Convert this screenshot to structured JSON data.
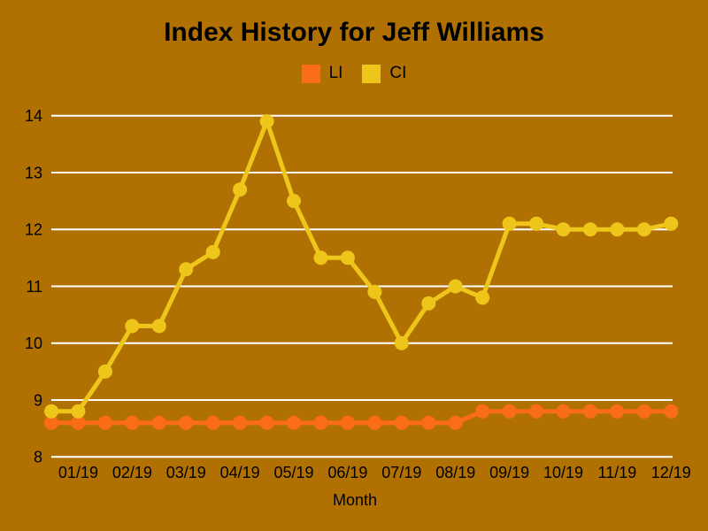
{
  "title": "Index History for Jeff Williams",
  "colors": {
    "background": "#B07102",
    "grid": "#FFFFFF",
    "text": "#000000",
    "li": "#FB6C16",
    "ci": "#EEC61A"
  },
  "legend": {
    "entries": [
      "LI",
      "CI"
    ]
  },
  "chart_data": {
    "type": "line",
    "title": "Index History for Jeff Williams",
    "xlabel": "Month",
    "ylabel": "",
    "ylim": [
      8,
      14
    ],
    "y_ticks": [
      8,
      9,
      10,
      11,
      12,
      13,
      14
    ],
    "x_tick_labels": [
      "01/19",
      "02/19",
      "03/19",
      "04/19",
      "05/19",
      "06/19",
      "07/19",
      "08/19",
      "09/19",
      "10/19",
      "11/19",
      "12/19"
    ],
    "points_per_month": 2,
    "grid": "horizontal-only",
    "legend_position": "top-center",
    "marker": "circle",
    "series": [
      {
        "name": "LI",
        "color": "#FB6C16",
        "values": [
          8.6,
          8.6,
          8.6,
          8.6,
          8.6,
          8.6,
          8.6,
          8.6,
          8.6,
          8.6,
          8.6,
          8.6,
          8.6,
          8.6,
          8.6,
          8.6,
          8.8,
          8.8,
          8.8,
          8.8,
          8.8,
          8.8,
          8.8,
          8.8
        ]
      },
      {
        "name": "CI",
        "color": "#EEC61A",
        "values": [
          8.8,
          8.8,
          9.5,
          10.3,
          10.3,
          11.3,
          11.6,
          12.7,
          13.9,
          12.5,
          11.5,
          11.5,
          10.9,
          10.0,
          10.7,
          11.0,
          10.8,
          12.1,
          12.1,
          12.0,
          12.0,
          12.0,
          12.0,
          12.1
        ]
      }
    ]
  }
}
